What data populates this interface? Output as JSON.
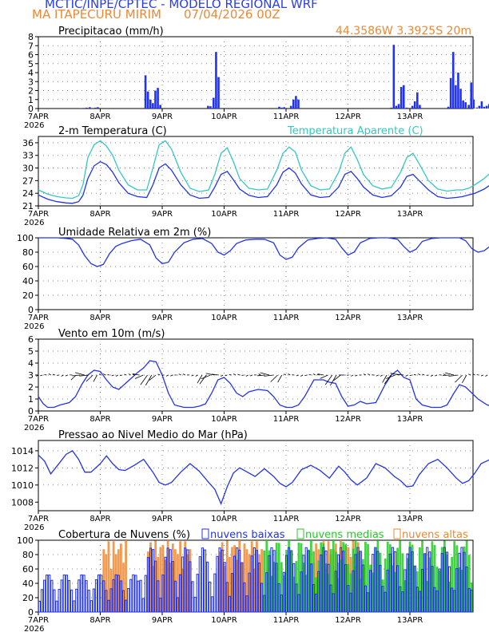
{
  "header": {
    "title": "MCTIC/INPE/CPTEC - MODELO REGIONAL WRF",
    "location": "MA ITAPECURU MIRIM",
    "run": "07/04/2026 00Z",
    "coords": "44.3586W 3.3925S 20m"
  },
  "colors": {
    "blue": "#2233ee",
    "cyan": "#33c8c0",
    "orange": "#ee8833",
    "green": "#22cc22",
    "title_blue": "#2a3ee8"
  },
  "days": [
    "7APR",
    "8APR",
    "9APR",
    "10APR",
    "11APR",
    "12APR",
    "13APR"
  ],
  "year": "2026",
  "chart_data": [
    {
      "type": "bar",
      "title": "Precipitacao (mm/h)",
      "ylim": [
        0,
        8
      ],
      "yticks": [
        0,
        1,
        2,
        3,
        4,
        5,
        6,
        7,
        8
      ],
      "x_days": [
        0.6,
        0.7,
        0.85,
        1.0,
        1.05,
        1.5,
        1.6,
        1.65,
        1.7,
        1.73,
        1.8,
        2.2,
        2.8,
        2.85,
        2.9,
        3.02,
        3.1,
        3.15,
        3.2,
        3.25,
        4.25,
        4.3,
        4.35,
        4.95,
        5.0,
        5.05,
        5.1,
        5.15,
        5.25,
        5.3,
        5.3,
        5.35,
        6.58,
        6.62,
        6.65,
        6.7,
        6.75,
        6.8,
        6.85,
        6.9,
        6.95,
        7.0,
        7.05,
        7.1,
        7.2,
        7.7,
        7.75,
        7.8,
        7.85,
        7.9,
        7.95,
        8.0,
        8.05,
        8.1,
        8.15,
        8.2,
        8.25,
        8.3,
        8.35,
        8.4,
        8.45,
        8.5,
        8.55,
        8.6,
        8.65,
        8.7
      ],
      "values": [
        0,
        0,
        0.1,
        0,
        0,
        0.1,
        0.15,
        0.2,
        0.1,
        0.2,
        0,
        0,
        0,
        0,
        0,
        0,
        0,
        0,
        0,
        0,
        0,
        0,
        0,
        0,
        0,
        0,
        0,
        0,
        0,
        0,
        0,
        0,
        0,
        0,
        0,
        0,
        0,
        0,
        0,
        0,
        0,
        0,
        0,
        0,
        0,
        0,
        0,
        0,
        0,
        0,
        0,
        0,
        0,
        0,
        0,
        0,
        0,
        0,
        0,
        0,
        0,
        0,
        0,
        0,
        0,
        0
      ],
      "bars": [
        [
          0.68,
          0.05
        ],
        [
          0.78,
          0.1
        ],
        [
          0.83,
          0.15
        ],
        [
          0.92,
          0.1
        ],
        [
          0.96,
          0.15
        ],
        [
          1.73,
          3.7
        ],
        [
          1.77,
          1.9
        ],
        [
          1.81,
          1.0
        ],
        [
          1.85,
          0.6
        ],
        [
          1.89,
          2.0
        ],
        [
          1.93,
          2.3
        ],
        [
          1.97,
          0.4
        ],
        [
          2.74,
          0.3
        ],
        [
          2.78,
          0.25
        ],
        [
          2.83,
          1.2
        ],
        [
          2.87,
          6.3
        ],
        [
          2.91,
          3.5
        ],
        [
          3.89,
          0.2
        ],
        [
          3.93,
          0.1
        ],
        [
          3.97,
          0.15
        ],
        [
          4.08,
          0.3
        ],
        [
          4.12,
          1.0
        ],
        [
          4.16,
          1.4
        ],
        [
          4.2,
          1.0
        ],
        [
          5.7,
          0.1
        ],
        [
          5.74,
          7.1
        ],
        [
          5.78,
          0.3
        ],
        [
          5.82,
          0.5
        ],
        [
          5.86,
          2.4
        ],
        [
          5.9,
          2.6
        ],
        [
          5.95,
          0.1
        ],
        [
          6.04,
          0.3
        ],
        [
          6.08,
          0.8
        ],
        [
          6.12,
          1.8
        ],
        [
          6.16,
          0.4
        ],
        [
          6.62,
          0.2
        ],
        [
          6.66,
          3.4
        ],
        [
          6.7,
          6.3
        ],
        [
          6.74,
          2.6
        ],
        [
          6.78,
          4.0
        ],
        [
          6.82,
          2.2
        ],
        [
          6.86,
          0.9
        ],
        [
          6.9,
          0.7
        ],
        [
          6.95,
          0.4
        ],
        [
          6.99,
          2.9
        ],
        [
          7.03,
          1.0
        ],
        [
          7.08,
          0.1
        ],
        [
          7.12,
          0.3
        ],
        [
          7.16,
          0.8
        ],
        [
          7.2,
          0.2
        ],
        [
          7.24,
          0.3
        ],
        [
          7.28,
          0.5
        ],
        [
          7.32,
          0.4
        ]
      ]
    },
    {
      "type": "line",
      "title": "2-m Temperatura (C)",
      "series_label_2": "Temperatura Aparente (C)",
      "ylim": [
        21,
        37.5
      ],
      "yticks": [
        21,
        24,
        27,
        30,
        33,
        36
      ],
      "series": [
        {
          "name": "2-m Temperatura (C)",
          "x": [
            0,
            0.15,
            0.3,
            0.45,
            0.55,
            0.65,
            0.72,
            0.8,
            0.9,
            1.0,
            1.1,
            1.2,
            1.3,
            1.45,
            1.6,
            1.75,
            1.85,
            1.95,
            2.05,
            2.15,
            2.3,
            2.45,
            2.6,
            2.75,
            2.85,
            2.95,
            3.05,
            3.15,
            3.25,
            3.4,
            3.55,
            3.7,
            3.85,
            3.95,
            4.05,
            4.15,
            4.25,
            4.4,
            4.55,
            4.7,
            4.85,
            4.95,
            5.05,
            5.15,
            5.25,
            5.4,
            5.55,
            5.7,
            5.85,
            5.95,
            6.05,
            6.15,
            6.3,
            6.45,
            6.6,
            6.75,
            6.85,
            6.95,
            7.05,
            7.2,
            7.35,
            7.5,
            7.65,
            7.8,
            7.9,
            8.0
          ],
          "values": [
            23.6,
            22.6,
            22.0,
            21.7,
            21.6,
            22.0,
            23.5,
            27.5,
            30.5,
            31.5,
            30.8,
            29.0,
            26.5,
            24.0,
            23.2,
            23.0,
            26.0,
            30.0,
            31.0,
            29.5,
            26.0,
            23.6,
            22.8,
            23.0,
            25.5,
            28.5,
            29.2,
            27.2,
            25.0,
            23.5,
            23.0,
            23.2,
            26.0,
            29.0,
            30.0,
            28.8,
            26.2,
            23.6,
            23.0,
            23.2,
            25.5,
            28.5,
            29.2,
            27.5,
            25.5,
            23.6,
            23.0,
            23.4,
            25.5,
            28.0,
            28.5,
            27.0,
            24.8,
            23.2,
            22.8,
            23.0,
            23.2,
            23.6,
            24.0,
            25.0,
            26.5,
            27.2,
            27.4,
            26.5,
            25.0,
            24.5
          ]
        },
        {
          "name": "Temperatura Aparente (C)",
          "x": [
            0,
            0.15,
            0.3,
            0.45,
            0.55,
            0.65,
            0.72,
            0.8,
            0.9,
            1.0,
            1.1,
            1.2,
            1.3,
            1.45,
            1.6,
            1.75,
            1.85,
            1.95,
            2.05,
            2.15,
            2.3,
            2.45,
            2.6,
            2.75,
            2.85,
            2.95,
            3.05,
            3.15,
            3.25,
            3.4,
            3.55,
            3.7,
            3.85,
            3.95,
            4.05,
            4.15,
            4.25,
            4.4,
            4.55,
            4.7,
            4.85,
            4.95,
            5.05,
            5.15,
            5.25,
            5.4,
            5.55,
            5.7,
            5.85,
            5.95,
            6.05,
            6.15,
            6.3,
            6.45,
            6.6,
            6.75,
            6.85,
            6.95,
            7.05,
            7.2,
            7.35,
            7.5,
            7.65,
            7.8,
            7.9,
            8.0
          ],
          "values": [
            24.8,
            23.8,
            23.2,
            22.9,
            22.8,
            23.4,
            26.0,
            32.5,
            35.5,
            36.5,
            35.2,
            33.0,
            29.5,
            26.0,
            24.8,
            24.8,
            30.0,
            35.5,
            36.5,
            34.5,
            29.0,
            25.2,
            24.4,
            24.8,
            28.5,
            33.5,
            34.8,
            31.5,
            27.5,
            25.2,
            24.8,
            25.0,
            29.5,
            33.5,
            35.0,
            33.8,
            29.5,
            25.8,
            24.8,
            25.0,
            29.0,
            33.5,
            35.0,
            32.0,
            28.5,
            25.8,
            25.0,
            25.4,
            29.0,
            32.5,
            33.5,
            31.0,
            27.0,
            25.0,
            24.5,
            24.8,
            24.8,
            25.2,
            26.0,
            27.5,
            29.5,
            30.2,
            30.2,
            29.5,
            27.5,
            26.8
          ]
        }
      ]
    },
    {
      "type": "line",
      "title": "Umidade Relativa em 2m (%)",
      "ylim": [
        0,
        100
      ],
      "yticks": [
        0,
        20,
        40,
        60,
        80,
        100
      ],
      "series": [
        {
          "name": "Umidade Relativa em 2m (%)",
          "x": [
            0,
            0.1,
            0.2,
            0.3,
            0.45,
            0.55,
            0.65,
            0.75,
            0.85,
            0.95,
            1.05,
            1.15,
            1.25,
            1.35,
            1.5,
            1.65,
            1.8,
            1.9,
            2.0,
            2.1,
            2.2,
            2.35,
            2.5,
            2.65,
            2.8,
            2.9,
            3.0,
            3.1,
            3.2,
            3.35,
            3.5,
            3.65,
            3.8,
            3.9,
            4.0,
            4.1,
            4.2,
            4.35,
            4.5,
            4.65,
            4.8,
            4.9,
            5.0,
            5.1,
            5.2,
            5.35,
            5.5,
            5.65,
            5.8,
            5.9,
            6.0,
            6.1,
            6.2,
            6.35,
            6.5,
            6.65,
            6.8,
            6.9,
            7.0,
            7.1,
            7.2,
            7.35,
            7.5,
            7.65,
            7.8,
            7.9,
            8.0
          ],
          "values": [
            100,
            100,
            100,
            100,
            99,
            98,
            90,
            75,
            64,
            60,
            63,
            78,
            88,
            92,
            96,
            98,
            90,
            72,
            64,
            66,
            80,
            93,
            98,
            99,
            92,
            80,
            76,
            82,
            92,
            97,
            98,
            98,
            93,
            76,
            70,
            73,
            86,
            97,
            99,
            100,
            98,
            86,
            76,
            80,
            93,
            99,
            100,
            100,
            98,
            88,
            80,
            84,
            95,
            99,
            100,
            100,
            100,
            96,
            85,
            80,
            82,
            92,
            86,
            76,
            73,
            75,
            84
          ]
        }
      ]
    },
    {
      "type": "line",
      "title": "Vento em 10m (m/s)",
      "ylim": [
        0,
        6
      ],
      "yticks": [
        0,
        1,
        2,
        3,
        4,
        5,
        6
      ],
      "series": [
        {
          "name": "Vento em 10m (m/s)",
          "x": [
            0,
            0.08,
            0.15,
            0.25,
            0.35,
            0.5,
            0.6,
            0.7,
            0.8,
            0.9,
            1.0,
            1.1,
            1.2,
            1.3,
            1.45,
            1.6,
            1.7,
            1.8,
            1.9,
            2.0,
            2.1,
            2.2,
            2.35,
            2.5,
            2.6,
            2.7,
            2.8,
            2.9,
            3.0,
            3.1,
            3.2,
            3.3,
            3.4,
            3.55,
            3.7,
            3.8,
            3.9,
            4.0,
            4.1,
            4.2,
            4.3,
            4.45,
            4.6,
            4.7,
            4.8,
            4.9,
            5.0,
            5.1,
            5.2,
            5.3,
            5.45,
            5.6,
            5.7,
            5.8,
            5.9,
            6.0,
            6.1,
            6.2,
            6.35,
            6.5,
            6.6,
            6.7,
            6.8,
            6.9,
            7.0,
            7.1,
            7.25,
            7.4,
            7.5,
            7.6,
            7.7,
            7.8,
            7.9,
            8.0
          ],
          "values": [
            1.2,
            0.6,
            0.3,
            0.3,
            0.5,
            0.7,
            1.2,
            2.2,
            3.0,
            3.4,
            3.3,
            2.6,
            2.0,
            1.8,
            2.5,
            3.2,
            3.6,
            4.2,
            4.1,
            3.0,
            1.5,
            0.5,
            0.3,
            0.3,
            0.4,
            0.6,
            1.5,
            2.6,
            2.8,
            2.3,
            1.5,
            1.2,
            1.6,
            1.8,
            1.7,
            1.2,
            0.5,
            0.3,
            0.3,
            0.5,
            1.2,
            2.6,
            2.6,
            2.4,
            2.3,
            1.2,
            0.4,
            0.5,
            0.8,
            0.6,
            0.7,
            2.2,
            3.0,
            3.4,
            2.8,
            2.6,
            1.0,
            0.5,
            0.3,
            0.3,
            0.5,
            1.4,
            2.2,
            2.0,
            1.5,
            1.0,
            0.5,
            0.3,
            0.3,
            0.6,
            2.6,
            1.8,
            1.3,
            0.7
          ]
        }
      ]
    },
    {
      "type": "line",
      "title": "Pressao ao Nivel Medio do Mar (hPa)",
      "ylim": [
        1007,
        1015.2
      ],
      "yticks": [
        1008,
        1010,
        1012,
        1014
      ],
      "series": [
        {
          "name": "Pressao ao Nivel Medio do Mar (hPa)",
          "x": [
            0,
            0.1,
            0.2,
            0.3,
            0.45,
            0.55,
            0.65,
            0.75,
            0.85,
            1.0,
            1.1,
            1.2,
            1.3,
            1.4,
            1.55,
            1.7,
            1.85,
            1.95,
            2.05,
            2.15,
            2.3,
            2.45,
            2.6,
            2.75,
            2.85,
            2.95,
            3.05,
            3.15,
            3.25,
            3.35,
            3.5,
            3.65,
            3.8,
            3.9,
            4.0,
            4.1,
            4.25,
            4.4,
            4.55,
            4.7,
            4.85,
            4.95,
            5.05,
            5.15,
            5.3,
            5.45,
            5.6,
            5.75,
            5.85,
            5.95,
            6.05,
            6.15,
            6.3,
            6.45,
            6.6,
            6.75,
            6.85,
            6.95,
            7.05,
            7.15,
            7.3,
            7.45,
            7.6,
            7.75,
            7.85,
            7.95,
            8.0
          ],
          "values": [
            1013.5,
            1012.8,
            1011.3,
            1012.2,
            1013.6,
            1014.0,
            1013.0,
            1011.5,
            1011.5,
            1012.5,
            1013.4,
            1012.5,
            1011.8,
            1011.7,
            1012.3,
            1013.0,
            1011.5,
            1010.3,
            1010.0,
            1010.3,
            1011.5,
            1012.5,
            1011.6,
            1010.3,
            1009.5,
            1007.8,
            1009.8,
            1011.4,
            1012.0,
            1011.6,
            1011.0,
            1011.9,
            1011.0,
            1010.2,
            1009.8,
            1010.3,
            1011.8,
            1012.3,
            1011.7,
            1010.8,
            1012.2,
            1011.5,
            1010.6,
            1010.0,
            1010.8,
            1012.5,
            1012.0,
            1011.0,
            1010.5,
            1009.8,
            1009.9,
            1011.2,
            1012.5,
            1013.0,
            1012.0,
            1010.8,
            1010.2,
            1010.5,
            1011.4,
            1012.5,
            1013.0,
            1012.4,
            1011.2,
            1010.4,
            1009.0,
            1008.5,
            1010.0
          ]
        }
      ]
    },
    {
      "type": "bar",
      "title": "Cobertura de Nuvens (%)",
      "legend": [
        "nuvens baixas",
        "nuvens medias",
        "nuvens altas"
      ],
      "ylim": [
        0,
        100
      ],
      "yticks": [
        0,
        20,
        40,
        60,
        80,
        100
      ]
    }
  ]
}
